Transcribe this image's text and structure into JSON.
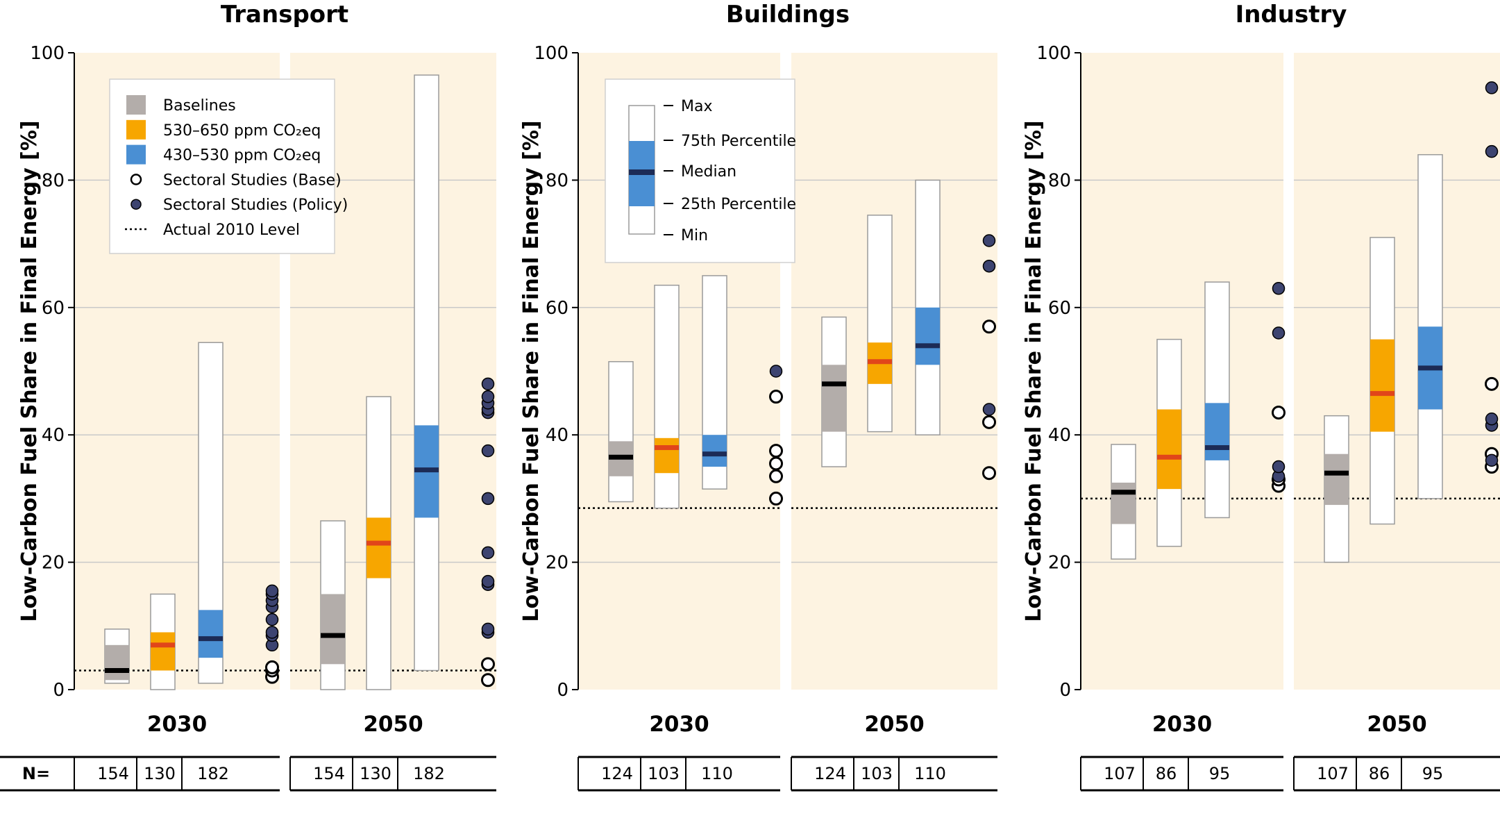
{
  "colors": {
    "panel_bg": "#fdf3e1",
    "baseline": "#b3adaa",
    "mid_530_650": "#f7a600",
    "low_430_530": "#4a8fd3",
    "median_baseline": "#000000",
    "median_530_650": "#e1451a",
    "median_430_530": "#1c2b56",
    "policy_dot": "#3d4470",
    "whisker_box_edge": "#9a9a9a"
  },
  "legend_scenarios": {
    "baselines": "Baselines",
    "s530_650": "530–650 ppm CO₂eq",
    "s430_530": "430–530 ppm CO₂eq",
    "sect_base": "Sectoral Studies (Base)",
    "sect_policy": "Sectoral Studies (Policy)",
    "actual_2010": "Actual 2010 Level"
  },
  "legend_box": {
    "max": "Max",
    "p75": "75th Percentile",
    "median": "Median",
    "p25": "25th Percentile",
    "min": "Min"
  },
  "n_row_label": "N=",
  "chart_data": {
    "type": "box",
    "ylabel": "Low-Carbon Fuel Share in Final Energy [%]",
    "ylim": [
      0,
      100
    ],
    "yticks": [
      0,
      20,
      40,
      60,
      80,
      100
    ],
    "years": [
      "2030",
      "2050"
    ],
    "series_order": [
      "Baselines",
      "530–650 ppm CO2eq",
      "430–530 ppm CO2eq"
    ],
    "panels": [
      {
        "title": "Transport",
        "actual_2010": 3,
        "groups": [
          {
            "year": "2030",
            "n": [
              154,
              130,
              182
            ],
            "boxes": [
              {
                "series": "Baselines",
                "min": 1,
                "p25": 1.5,
                "median": 3,
                "p75": 7,
                "max": 9.5
              },
              {
                "series": "530–650 ppm CO2eq",
                "min": 0,
                "p25": 3,
                "median": 7,
                "p75": 9,
                "max": 15
              },
              {
                "series": "430–530 ppm CO2eq",
                "min": 1,
                "p25": 5,
                "median": 8,
                "p75": 12.5,
                "max": 54.5
              }
            ],
            "sectoral_base": [
              2,
              3,
              3.5
            ],
            "sectoral_policy": [
              7,
              8.5,
              9,
              11,
              13,
              14,
              15,
              15.5
            ]
          },
          {
            "year": "2050",
            "n": [
              154,
              130,
              182
            ],
            "boxes": [
              {
                "series": "Baselines",
                "min": 0,
                "p25": 4,
                "median": 8.5,
                "p75": 15,
                "max": 26.5
              },
              {
                "series": "530–650 ppm CO2eq",
                "min": 0,
                "p25": 17.5,
                "median": 23,
                "p75": 27,
                "max": 46
              },
              {
                "series": "430–530 ppm CO2eq",
                "min": 3,
                "p25": 27,
                "median": 34.5,
                "p75": 41.5,
                "max": 96.5
              }
            ],
            "sectoral_base": [
              1.5,
              4
            ],
            "sectoral_policy": [
              9,
              9.5,
              16.5,
              17,
              21.5,
              30,
              37.5,
              43.5,
              44,
              45,
              46,
              48
            ]
          }
        ]
      },
      {
        "title": "Buildings",
        "actual_2010": 28.5,
        "groups": [
          {
            "year": "2030",
            "n": [
              124,
              103,
              110
            ],
            "boxes": [
              {
                "series": "Baselines",
                "min": 29.5,
                "p25": 33.5,
                "median": 36.5,
                "p75": 39,
                "max": 51.5
              },
              {
                "series": "530–650 ppm CO2eq",
                "min": 28.5,
                "p25": 34,
                "median": 38,
                "p75": 39.5,
                "max": 63.5
              },
              {
                "series": "430–530 ppm CO2eq",
                "min": 31.5,
                "p25": 35,
                "median": 37,
                "p75": 40,
                "max": 65
              }
            ],
            "sectoral_base": [
              30,
              33.5,
              35.5,
              37.5,
              46
            ],
            "sectoral_policy": [
              50
            ]
          },
          {
            "year": "2050",
            "n": [
              124,
              103,
              110
            ],
            "boxes": [
              {
                "series": "Baselines",
                "min": 35,
                "p25": 40.5,
                "median": 48,
                "p75": 51,
                "max": 58.5
              },
              {
                "series": "530–650 ppm CO2eq",
                "min": 40.5,
                "p25": 48,
                "median": 51.5,
                "p75": 54.5,
                "max": 74.5
              },
              {
                "series": "430–530 ppm CO2eq",
                "min": 40,
                "p25": 51,
                "median": 54,
                "p75": 60,
                "max": 80
              }
            ],
            "sectoral_base": [
              34,
              42,
              57
            ],
            "sectoral_policy": [
              44,
              66.5,
              70.5
            ]
          }
        ]
      },
      {
        "title": "Industry",
        "actual_2010": 30,
        "groups": [
          {
            "year": "2030",
            "n": [
              107,
              86,
              95
            ],
            "boxes": [
              {
                "series": "Baselines",
                "min": 20.5,
                "p25": 26,
                "median": 31,
                "p75": 32.5,
                "max": 38.5
              },
              {
                "series": "530–650 ppm CO2eq",
                "min": 22.5,
                "p25": 31.5,
                "median": 36.5,
                "p75": 44,
                "max": 55
              },
              {
                "series": "430–530 ppm CO2eq",
                "min": 27,
                "p25": 36,
                "median": 38,
                "p75": 45,
                "max": 64
              }
            ],
            "sectoral_base": [
              32,
              33,
              43.5
            ],
            "sectoral_policy": [
              33.5,
              35,
              56,
              63
            ]
          },
          {
            "year": "2050",
            "n": [
              107,
              86,
              95
            ],
            "boxes": [
              {
                "series": "Baselines",
                "min": 20,
                "p25": 29,
                "median": 34,
                "p75": 37,
                "max": 43
              },
              {
                "series": "530–650 ppm CO2eq",
                "min": 26,
                "p25": 40.5,
                "median": 46.5,
                "p75": 55,
                "max": 71
              },
              {
                "series": "430–530 ppm CO2eq",
                "min": 30,
                "p25": 44,
                "median": 50.5,
                "p75": 57,
                "max": 84
              }
            ],
            "sectoral_base": [
              35,
              37,
              48
            ],
            "sectoral_policy": [
              36,
              41.5,
              42.5,
              84.5,
              94.5
            ]
          }
        ]
      }
    ]
  }
}
